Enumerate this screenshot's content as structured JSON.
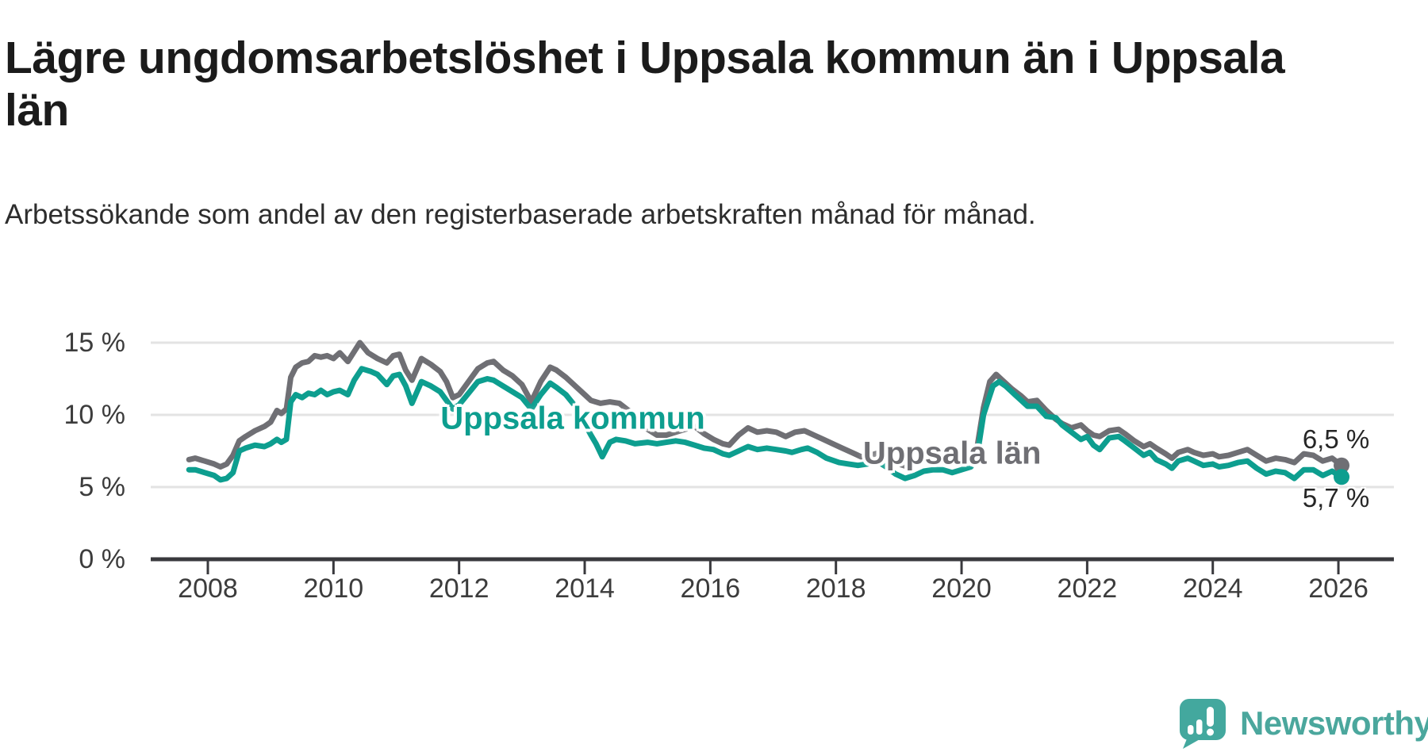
{
  "page": {
    "background": "#ffffff"
  },
  "chart_data": {
    "type": "line",
    "title": "Lägre ungdomsarbetslöshet i Uppsala kommun än i Uppsala län",
    "subtitle": "Arbetssökande som andel av den registerbaserade arbetskraften månad för månad.",
    "x_axis": {
      "ticks": [
        2008,
        2010,
        2012,
        2014,
        2016,
        2018,
        2020,
        2022,
        2024,
        2026
      ],
      "range": [
        2007.09,
        2026.88
      ],
      "grid": false
    },
    "y_axis": {
      "unit": "%",
      "tick_labels": [
        "0 %",
        "5 %",
        "10 %",
        "15 %"
      ],
      "tick_values": [
        0,
        5,
        10,
        15
      ],
      "range": [
        0,
        15.9
      ],
      "grid": true,
      "grid_color": "#e3e3e3",
      "axis_color": "#39393d",
      "tick_label_color": "#3c3c3c"
    },
    "legend_position": "inline-labels",
    "series": [
      {
        "name": "Uppsala län",
        "color": "#6f6f74",
        "line_width": 7,
        "end_label": "6,5 %",
        "end_value": 6.5,
        "label_anchor": {
          "year": 2019.85,
          "value": 7.31
        },
        "data": [
          [
            2007.7,
            6.9
          ],
          [
            2007.8,
            7.0
          ],
          [
            2007.95,
            6.8
          ],
          [
            2008.1,
            6.6
          ],
          [
            2008.2,
            6.4
          ],
          [
            2008.3,
            6.6
          ],
          [
            2008.4,
            7.2
          ],
          [
            2008.5,
            8.2
          ],
          [
            2008.6,
            8.5
          ],
          [
            2008.75,
            8.9
          ],
          [
            2008.9,
            9.2
          ],
          [
            2009.0,
            9.5
          ],
          [
            2009.1,
            10.3
          ],
          [
            2009.17,
            10.1
          ],
          [
            2009.25,
            10.4
          ],
          [
            2009.32,
            12.6
          ],
          [
            2009.4,
            13.3
          ],
          [
            2009.5,
            13.6
          ],
          [
            2009.6,
            13.7
          ],
          [
            2009.7,
            14.1
          ],
          [
            2009.8,
            14.0
          ],
          [
            2009.9,
            14.1
          ],
          [
            2010.0,
            13.9
          ],
          [
            2010.1,
            14.3
          ],
          [
            2010.23,
            13.7
          ],
          [
            2010.42,
            15.0
          ],
          [
            2010.55,
            14.3
          ],
          [
            2010.7,
            13.9
          ],
          [
            2010.85,
            13.6
          ],
          [
            2010.95,
            14.1
          ],
          [
            2011.05,
            14.2
          ],
          [
            2011.15,
            13.1
          ],
          [
            2011.25,
            12.4
          ],
          [
            2011.4,
            13.9
          ],
          [
            2011.55,
            13.5
          ],
          [
            2011.7,
            13.0
          ],
          [
            2011.8,
            12.3
          ],
          [
            2011.9,
            11.2
          ],
          [
            2012.0,
            11.4
          ],
          [
            2012.15,
            12.3
          ],
          [
            2012.3,
            13.2
          ],
          [
            2012.45,
            13.6
          ],
          [
            2012.55,
            13.7
          ],
          [
            2012.7,
            13.1
          ],
          [
            2012.85,
            12.7
          ],
          [
            2013.0,
            12.1
          ],
          [
            2013.15,
            10.9
          ],
          [
            2013.3,
            12.3
          ],
          [
            2013.45,
            13.3
          ],
          [
            2013.55,
            13.1
          ],
          [
            2013.7,
            12.6
          ],
          [
            2013.85,
            12.0
          ],
          [
            2014.0,
            11.4
          ],
          [
            2014.1,
            11.0
          ],
          [
            2014.25,
            10.8
          ],
          [
            2014.4,
            10.9
          ],
          [
            2014.55,
            10.8
          ],
          [
            2014.7,
            10.3
          ],
          [
            2014.85,
            9.6
          ],
          [
            2015.0,
            9.0
          ],
          [
            2015.15,
            8.6
          ],
          [
            2015.3,
            8.6
          ],
          [
            2015.45,
            8.8
          ],
          [
            2015.6,
            9.0
          ],
          [
            2015.75,
            9.2
          ],
          [
            2015.9,
            8.7
          ],
          [
            2016.05,
            8.3
          ],
          [
            2016.2,
            8.0
          ],
          [
            2016.3,
            7.9
          ],
          [
            2016.45,
            8.6
          ],
          [
            2016.6,
            9.1
          ],
          [
            2016.75,
            8.8
          ],
          [
            2016.9,
            8.9
          ],
          [
            2017.05,
            8.8
          ],
          [
            2017.2,
            8.5
          ],
          [
            2017.35,
            8.8
          ],
          [
            2017.5,
            8.9
          ],
          [
            2017.65,
            8.6
          ],
          [
            2017.8,
            8.3
          ],
          [
            2017.95,
            8.0
          ],
          [
            2018.1,
            7.7
          ],
          [
            2018.25,
            7.4
          ],
          [
            2018.4,
            7.1
          ],
          [
            2018.55,
            7.2
          ],
          [
            2018.7,
            7.4
          ],
          [
            2018.85,
            7.1
          ],
          [
            2019.0,
            6.6
          ],
          [
            2019.15,
            6.4
          ],
          [
            2019.3,
            6.7
          ],
          [
            2019.5,
            7.0
          ],
          [
            2019.7,
            7.0
          ],
          [
            2019.85,
            6.8
          ],
          [
            2020.0,
            7.0
          ],
          [
            2020.15,
            7.2
          ],
          [
            2020.25,
            7.8
          ],
          [
            2020.35,
            10.5
          ],
          [
            2020.45,
            12.3
          ],
          [
            2020.55,
            12.8
          ],
          [
            2020.65,
            12.4
          ],
          [
            2020.8,
            11.8
          ],
          [
            2020.95,
            11.3
          ],
          [
            2021.05,
            10.9
          ],
          [
            2021.2,
            11.0
          ],
          [
            2021.35,
            10.3
          ],
          [
            2021.5,
            9.7
          ],
          [
            2021.6,
            9.4
          ],
          [
            2021.75,
            9.1
          ],
          [
            2021.9,
            9.3
          ],
          [
            2022.0,
            8.9
          ],
          [
            2022.1,
            8.6
          ],
          [
            2022.2,
            8.5
          ],
          [
            2022.35,
            8.9
          ],
          [
            2022.5,
            9.0
          ],
          [
            2022.6,
            8.7
          ],
          [
            2022.75,
            8.2
          ],
          [
            2022.9,
            7.8
          ],
          [
            2023.0,
            8.0
          ],
          [
            2023.1,
            7.7
          ],
          [
            2023.25,
            7.3
          ],
          [
            2023.35,
            7.0
          ],
          [
            2023.45,
            7.4
          ],
          [
            2023.6,
            7.6
          ],
          [
            2023.7,
            7.4
          ],
          [
            2023.85,
            7.2
          ],
          [
            2024.0,
            7.3
          ],
          [
            2024.1,
            7.1
          ],
          [
            2024.25,
            7.2
          ],
          [
            2024.4,
            7.4
          ],
          [
            2024.55,
            7.6
          ],
          [
            2024.7,
            7.2
          ],
          [
            2024.85,
            6.8
          ],
          [
            2025.0,
            7.0
          ],
          [
            2025.15,
            6.9
          ],
          [
            2025.3,
            6.7
          ],
          [
            2025.45,
            7.3
          ],
          [
            2025.6,
            7.2
          ],
          [
            2025.75,
            6.8
          ],
          [
            2025.9,
            7.0
          ],
          [
            2026.05,
            6.5
          ]
        ]
      },
      {
        "name": "Uppsala kommun",
        "color": "#0d9e8f",
        "line_width": 7,
        "end_label": "5,7 %",
        "end_value": 5.7,
        "label_anchor": {
          "year": 2013.81,
          "value": 9.73
        },
        "data": [
          [
            2007.7,
            6.2
          ],
          [
            2007.8,
            6.2
          ],
          [
            2007.95,
            6.0
          ],
          [
            2008.1,
            5.8
          ],
          [
            2008.2,
            5.5
          ],
          [
            2008.3,
            5.6
          ],
          [
            2008.4,
            6.0
          ],
          [
            2008.5,
            7.5
          ],
          [
            2008.6,
            7.7
          ],
          [
            2008.75,
            7.9
          ],
          [
            2008.9,
            7.8
          ],
          [
            2009.0,
            8.0
          ],
          [
            2009.1,
            8.3
          ],
          [
            2009.17,
            8.1
          ],
          [
            2009.25,
            8.3
          ],
          [
            2009.32,
            10.9
          ],
          [
            2009.4,
            11.4
          ],
          [
            2009.5,
            11.2
          ],
          [
            2009.6,
            11.5
          ],
          [
            2009.7,
            11.4
          ],
          [
            2009.8,
            11.7
          ],
          [
            2009.9,
            11.4
          ],
          [
            2010.0,
            11.6
          ],
          [
            2010.1,
            11.7
          ],
          [
            2010.23,
            11.4
          ],
          [
            2010.33,
            12.4
          ],
          [
            2010.45,
            13.2
          ],
          [
            2010.6,
            13.0
          ],
          [
            2010.7,
            12.8
          ],
          [
            2010.85,
            12.1
          ],
          [
            2010.95,
            12.7
          ],
          [
            2011.05,
            12.8
          ],
          [
            2011.15,
            12.0
          ],
          [
            2011.25,
            10.8
          ],
          [
            2011.4,
            12.3
          ],
          [
            2011.55,
            12.0
          ],
          [
            2011.7,
            11.6
          ],
          [
            2011.8,
            11.0
          ],
          [
            2011.9,
            10.4
          ],
          [
            2012.0,
            10.7
          ],
          [
            2012.15,
            11.5
          ],
          [
            2012.3,
            12.3
          ],
          [
            2012.45,
            12.5
          ],
          [
            2012.55,
            12.4
          ],
          [
            2012.7,
            12.0
          ],
          [
            2012.85,
            11.6
          ],
          [
            2013.0,
            11.2
          ],
          [
            2013.15,
            10.4
          ],
          [
            2013.3,
            11.4
          ],
          [
            2013.45,
            12.2
          ],
          [
            2013.55,
            11.9
          ],
          [
            2013.7,
            11.4
          ],
          [
            2013.85,
            10.6
          ],
          [
            2014.0,
            9.4
          ],
          [
            2014.1,
            8.6
          ],
          [
            2014.18,
            8.0
          ],
          [
            2014.28,
            7.1
          ],
          [
            2014.4,
            8.1
          ],
          [
            2014.5,
            8.3
          ],
          [
            2014.65,
            8.2
          ],
          [
            2014.8,
            8.0
          ],
          [
            2015.0,
            8.1
          ],
          [
            2015.15,
            8.0
          ],
          [
            2015.3,
            8.1
          ],
          [
            2015.45,
            8.2
          ],
          [
            2015.6,
            8.1
          ],
          [
            2015.75,
            7.9
          ],
          [
            2015.9,
            7.7
          ],
          [
            2016.05,
            7.6
          ],
          [
            2016.2,
            7.3
          ],
          [
            2016.3,
            7.2
          ],
          [
            2016.45,
            7.5
          ],
          [
            2016.6,
            7.8
          ],
          [
            2016.75,
            7.6
          ],
          [
            2016.9,
            7.7
          ],
          [
            2017.05,
            7.6
          ],
          [
            2017.2,
            7.5
          ],
          [
            2017.3,
            7.4
          ],
          [
            2017.45,
            7.6
          ],
          [
            2017.55,
            7.7
          ],
          [
            2017.7,
            7.4
          ],
          [
            2017.85,
            7.0
          ],
          [
            2018.05,
            6.7
          ],
          [
            2018.2,
            6.6
          ],
          [
            2018.35,
            6.5
          ],
          [
            2018.5,
            6.6
          ],
          [
            2018.65,
            6.8
          ],
          [
            2018.8,
            6.4
          ],
          [
            2018.95,
            5.9
          ],
          [
            2019.1,
            5.6
          ],
          [
            2019.25,
            5.8
          ],
          [
            2019.4,
            6.1
          ],
          [
            2019.55,
            6.2
          ],
          [
            2019.7,
            6.2
          ],
          [
            2019.85,
            6.0
          ],
          [
            2020.0,
            6.2
          ],
          [
            2020.15,
            6.4
          ],
          [
            2020.25,
            7.2
          ],
          [
            2020.35,
            10.0
          ],
          [
            2020.5,
            12.0
          ],
          [
            2020.6,
            12.3
          ],
          [
            2020.7,
            12.0
          ],
          [
            2020.85,
            11.4
          ],
          [
            2020.95,
            11.0
          ],
          [
            2021.05,
            10.6
          ],
          [
            2021.2,
            10.6
          ],
          [
            2021.35,
            9.9
          ],
          [
            2021.5,
            9.8
          ],
          [
            2021.6,
            9.3
          ],
          [
            2021.75,
            8.8
          ],
          [
            2021.9,
            8.3
          ],
          [
            2022.0,
            8.5
          ],
          [
            2022.1,
            7.9
          ],
          [
            2022.2,
            7.6
          ],
          [
            2022.35,
            8.4
          ],
          [
            2022.5,
            8.5
          ],
          [
            2022.6,
            8.2
          ],
          [
            2022.75,
            7.7
          ],
          [
            2022.9,
            7.2
          ],
          [
            2023.0,
            7.4
          ],
          [
            2023.1,
            6.9
          ],
          [
            2023.25,
            6.6
          ],
          [
            2023.35,
            6.3
          ],
          [
            2023.45,
            6.8
          ],
          [
            2023.6,
            7.0
          ],
          [
            2023.7,
            6.8
          ],
          [
            2023.85,
            6.5
          ],
          [
            2024.0,
            6.6
          ],
          [
            2024.1,
            6.4
          ],
          [
            2024.25,
            6.5
          ],
          [
            2024.4,
            6.7
          ],
          [
            2024.55,
            6.8
          ],
          [
            2024.7,
            6.3
          ],
          [
            2024.85,
            5.9
          ],
          [
            2025.0,
            6.1
          ],
          [
            2025.15,
            6.0
          ],
          [
            2025.3,
            5.6
          ],
          [
            2025.45,
            6.2
          ],
          [
            2025.6,
            6.2
          ],
          [
            2025.75,
            5.8
          ],
          [
            2025.9,
            6.1
          ],
          [
            2026.05,
            5.7
          ]
        ]
      }
    ]
  },
  "logo": {
    "text": "Newsworthy",
    "icon": "newsworthy-speech-bubble-chart-icon",
    "icon_color": "#43a89e",
    "text_color": "#4ba79d"
  }
}
